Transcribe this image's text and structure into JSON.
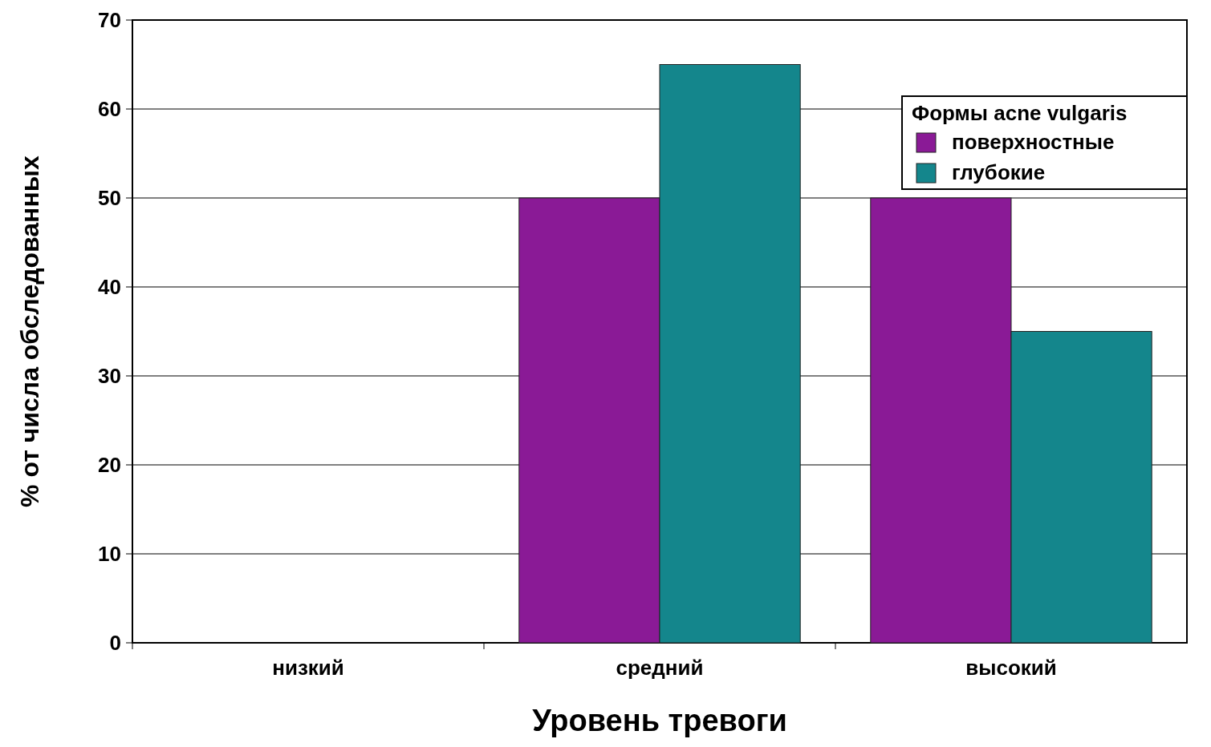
{
  "chart_data": {
    "type": "bar",
    "xlabel": "Уровень тревоги",
    "ylabel": "% от числа обследованных",
    "legend_title": "Формы acne vulgaris",
    "categories": [
      "низкий",
      "средний",
      "высокий"
    ],
    "series": [
      {
        "name": "поверхностные",
        "color": "#8a1a96",
        "values": [
          0,
          50,
          50
        ]
      },
      {
        "name": "глубокие",
        "color": "#14868c",
        "values": [
          0,
          65,
          35
        ]
      }
    ],
    "ylim": [
      0,
      70
    ],
    "yticks": [
      0,
      10,
      20,
      30,
      40,
      50,
      60,
      70
    ],
    "grid": "y",
    "legend": "top right"
  }
}
